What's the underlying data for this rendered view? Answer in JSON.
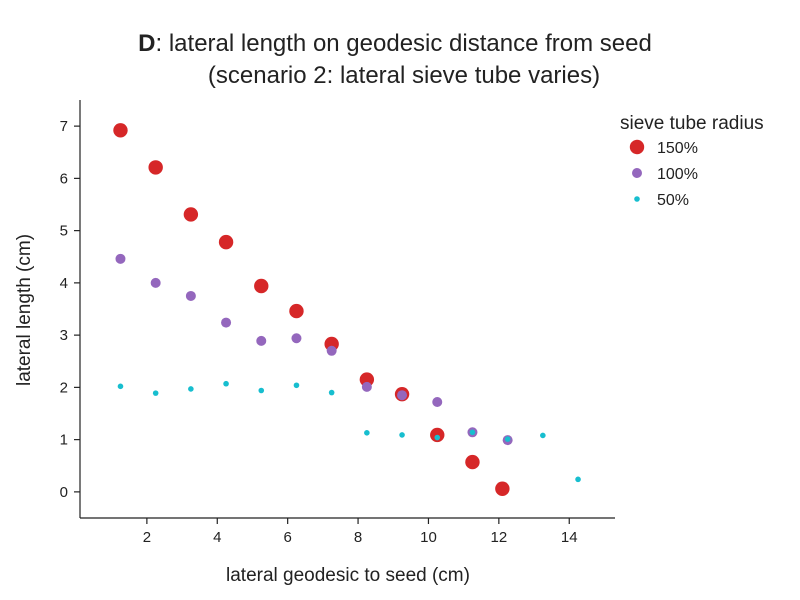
{
  "chart_data": {
    "type": "scatter",
    "title_prefix": "D",
    "title_line1": ": lateral length on geodesic distance from seed",
    "title_line2": "(scenario 2: lateral sieve tube varies)",
    "xlabel": "lateral geodesic to seed (cm)",
    "ylabel": "lateral length (cm)",
    "xlim": [
      0.1,
      15.3
    ],
    "ylim": [
      -0.5,
      7.5
    ],
    "xticks": [
      2,
      4,
      6,
      8,
      10,
      12,
      14
    ],
    "yticks": [
      0,
      1,
      2,
      3,
      4,
      5,
      6,
      7
    ],
    "grid": false,
    "legend": {
      "title": "sieve tube radius",
      "placement": "top-right"
    },
    "series": [
      {
        "name": "150%",
        "color": "#d62728",
        "size": "large",
        "x": [
          1.25,
          2.25,
          3.25,
          4.25,
          5.25,
          6.25,
          7.25,
          8.25,
          9.25,
          10.25,
          11.25,
          12.1
        ],
        "y": [
          6.92,
          6.21,
          5.31,
          4.78,
          3.94,
          3.46,
          2.83,
          2.15,
          1.87,
          1.09,
          0.57,
          0.06
        ]
      },
      {
        "name": "100%",
        "color": "#9467bd",
        "size": "medium",
        "x": [
          1.25,
          2.25,
          3.25,
          4.25,
          5.25,
          6.25,
          7.25,
          8.25,
          9.25,
          10.25,
          11.25,
          12.25
        ],
        "y": [
          4.46,
          4.0,
          3.75,
          3.24,
          2.89,
          2.94,
          2.7,
          2.01,
          1.85,
          1.72,
          1.14,
          0.99
        ]
      },
      {
        "name": "50%",
        "color": "#17becf",
        "size": "small",
        "x": [
          1.25,
          2.25,
          3.25,
          4.25,
          5.25,
          6.25,
          7.25,
          8.25,
          9.25,
          10.25,
          11.25,
          12.25,
          13.25,
          14.25
        ],
        "y": [
          2.02,
          1.89,
          1.97,
          2.07,
          1.94,
          2.04,
          1.9,
          1.13,
          1.09,
          1.04,
          1.14,
          1.01,
          1.08,
          0.24
        ]
      }
    ]
  }
}
